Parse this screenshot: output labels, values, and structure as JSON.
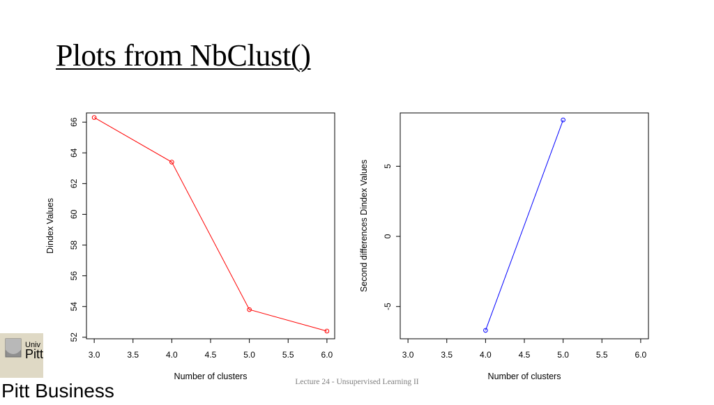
{
  "slide": {
    "title": "Plots from NbClust()",
    "footer": "Lecture 24 - Unsupervised Learning II",
    "logo_line1": "Univ",
    "logo_line2": "Pitt",
    "logo_line3": "Pitt Business"
  },
  "chart_data": [
    {
      "type": "line",
      "title": "",
      "xlabel": "Number of clusters",
      "ylabel": "Dindex Values",
      "xlim": [
        2.9,
        6.1
      ],
      "ylim": [
        51.9,
        66.6
      ],
      "xticks": [
        "3.0",
        "3.5",
        "4.0",
        "4.5",
        "5.0",
        "5.5",
        "6.0"
      ],
      "yticks": [
        "52",
        "54",
        "56",
        "58",
        "60",
        "62",
        "64",
        "66"
      ],
      "x": [
        3,
        4,
        5,
        6
      ],
      "series": [
        {
          "values": [
            66.3,
            63.4,
            53.8,
            52.4
          ],
          "color": "#ff0000"
        }
      ],
      "markers": "open-circle",
      "grid": false
    },
    {
      "type": "line",
      "title": "",
      "xlabel": "Number of clusters",
      "ylabel": "Second differences Dindex Values",
      "xlim": [
        2.9,
        6.1
      ],
      "ylim": [
        -7.3,
        8.8
      ],
      "xticks": [
        "3.0",
        "3.5",
        "4.0",
        "4.5",
        "5.0",
        "5.5",
        "6.0"
      ],
      "yticks": [
        "-5",
        "0",
        "5"
      ],
      "x": [
        4,
        5
      ],
      "series": [
        {
          "values": [
            -6.7,
            8.3
          ],
          "color": "#0000ff"
        }
      ],
      "markers": "open-circle",
      "grid": false
    }
  ]
}
